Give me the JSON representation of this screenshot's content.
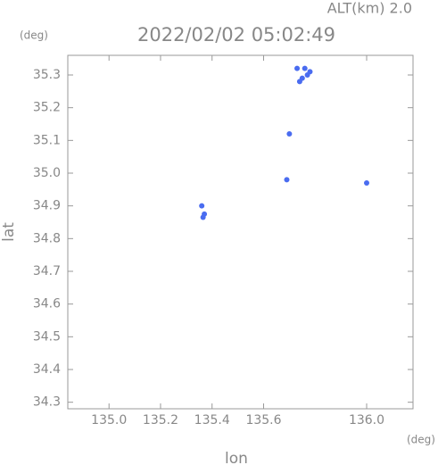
{
  "chart_data": {
    "type": "scatter",
    "title": "2022/02/02 05:02:49",
    "subtitle": "ALT(km) 2.0",
    "x_label": "lon",
    "y_label": "lat",
    "x_unit": "(deg)",
    "y_unit": "(deg)",
    "xlim": [
      134.84,
      136.18
    ],
    "ylim": [
      34.28,
      35.36
    ],
    "xticks": [
      {
        "value": 135.0,
        "label": "135.0"
      },
      135.2,
      135.4,
      135.6,
      {
        "value": 136.0,
        "label": "136.0"
      }
    ],
    "yticks": [
      34.3,
      34.4,
      34.5,
      34.6,
      34.7,
      34.8,
      34.9,
      {
        "value": 35.0,
        "label": "35.0"
      },
      35.1,
      35.2,
      35.3
    ],
    "series": [
      {
        "color": "#4a6cf0",
        "x": [
          135.73,
          135.76,
          135.78,
          135.74,
          135.75,
          135.77,
          135.7,
          135.69,
          136.0,
          135.36,
          135.37,
          135.365
        ],
        "values": [
          35.32,
          35.32,
          35.31,
          35.28,
          35.29,
          35.3,
          35.12,
          34.98,
          34.97,
          34.9,
          34.875,
          34.865
        ]
      }
    ]
  }
}
